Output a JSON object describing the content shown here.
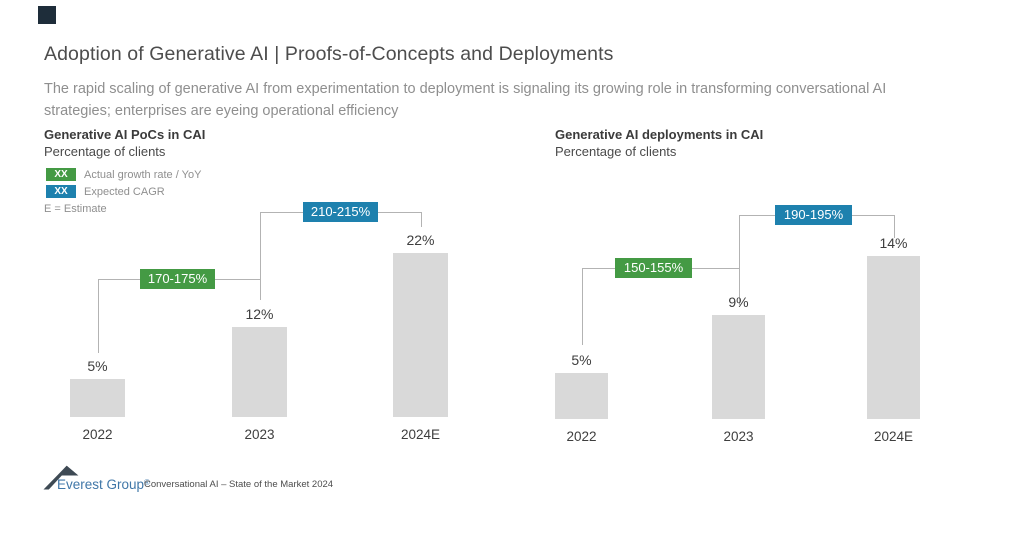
{
  "slide": {
    "title": "Adoption of Generative AI | Proofs-of-Concepts and Deployments",
    "subtitle_line1": "The rapid scaling of generative AI from experimentation to deployment is signaling its growing role in transforming conversational AI",
    "subtitle_line2": "strategies; enterprises are eyeing operational efficiency"
  },
  "legend": {
    "swatch_text": "XX",
    "items": [
      {
        "label": "Actual growth rate / YoY",
        "color": "#449a44"
      },
      {
        "label": "Expected CAGR",
        "color": "#1e81ae"
      }
    ],
    "estimate_note": "E = Estimate"
  },
  "chart_data": [
    {
      "type": "bar",
      "title": "Generative AI PoCs in CAI",
      "subtitle": "Percentage of clients",
      "categories": [
        "2022",
        "2023",
        "2024E"
      ],
      "values": [
        5,
        12,
        22
      ],
      "value_labels": [
        "5%",
        "12%",
        "22%"
      ],
      "unit": "% of clients",
      "bar_color": "#d9d9d9",
      "grid": false,
      "ylim": [
        0,
        24
      ],
      "growth_annotations": [
        {
          "label": "170-175%",
          "kind": "actual_growth_yoy",
          "color": "#449a44",
          "between": [
            "2022",
            "2023"
          ]
        },
        {
          "label": "210-215%",
          "kind": "expected_cagr",
          "color": "#1e81ae",
          "between": [
            "2023",
            "2024E"
          ]
        }
      ]
    },
    {
      "type": "bar",
      "title": "Generative AI deployments in CAI",
      "subtitle": "Percentage of clients",
      "categories": [
        "2022",
        "2023",
        "2024E"
      ],
      "values": [
        5,
        9,
        14
      ],
      "value_labels": [
        "5%",
        "9%",
        "14%"
      ],
      "unit": "% of clients",
      "bar_color": "#d9d9d9",
      "grid": false,
      "ylim": [
        0,
        16
      ],
      "growth_annotations": [
        {
          "label": "150-155%",
          "kind": "actual_growth_yoy",
          "color": "#449a44",
          "between": [
            "2022",
            "2023"
          ]
        },
        {
          "label": "190-195%",
          "kind": "expected_cagr",
          "color": "#1e81ae",
          "between": [
            "2023",
            "2024E"
          ]
        }
      ]
    }
  ],
  "footer": {
    "logo_text": "Everest Group",
    "logo_reg_mark": "®",
    "note": "Conversational AI – State of the Market 2024"
  }
}
